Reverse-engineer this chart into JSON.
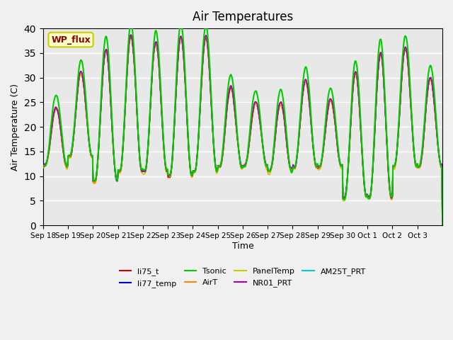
{
  "title": "Air Temperatures",
  "xlabel": "Time",
  "ylabel": "Air Temperature (C)",
  "ylim": [
    0,
    40
  ],
  "yticks": [
    0,
    5,
    10,
    15,
    20,
    25,
    30,
    35,
    40
  ],
  "bg_color": "#e8e8e8",
  "fig_color": "#f0f0f0",
  "annotation_text": "WP_flux",
  "annotation_color": "#8b0000",
  "annotation_bg": "#ffffcc",
  "annotation_border": "#cccc00",
  "series": [
    {
      "label": "li75_t",
      "color": "#cc0000",
      "zorder": 4,
      "lw": 1.2
    },
    {
      "label": "li77_temp",
      "color": "#0000cc",
      "zorder": 4,
      "lw": 1.2
    },
    {
      "label": "Tsonic",
      "color": "#00cc00",
      "zorder": 5,
      "lw": 1.5
    },
    {
      "label": "AirT",
      "color": "#ff8800",
      "zorder": 4,
      "lw": 1.2
    },
    {
      "label": "PanelTemp",
      "color": "#cccc00",
      "zorder": 3,
      "lw": 1.2
    },
    {
      "label": "NR01_PRT",
      "color": "#aa00aa",
      "zorder": 4,
      "lw": 1.2
    },
    {
      "label": "AM25T_PRT",
      "color": "#00cccc",
      "zorder": 3,
      "lw": 1.2
    }
  ],
  "xtick_positions": [
    0,
    1,
    2,
    3,
    4,
    5,
    6,
    7,
    8,
    9,
    10,
    11,
    12,
    13,
    14,
    15
  ],
  "xtick_labels": [
    "Sep 18",
    "Sep 19",
    "Sep 20",
    "Sep 21",
    "Sep 22",
    "Sep 23",
    "Sep 24",
    "Sep 25",
    "Sep 26",
    "Sep 27",
    "Sep 28",
    "Sep 29",
    "Sep 30",
    "Oct 1",
    "Oct 2",
    "Oct 3"
  ],
  "n_days": 16,
  "pts_per_day": 48,
  "day_peaks": [
    24,
    31,
    35.5,
    38.5,
    37,
    38.5,
    38,
    28,
    25,
    25,
    29.5,
    25.5,
    31,
    35,
    36,
    30
  ],
  "day_mins": [
    12,
    14,
    9,
    11,
    11,
    10,
    11,
    12,
    12,
    11,
    12,
    12,
    5.5,
    5.5,
    12,
    12
  ]
}
